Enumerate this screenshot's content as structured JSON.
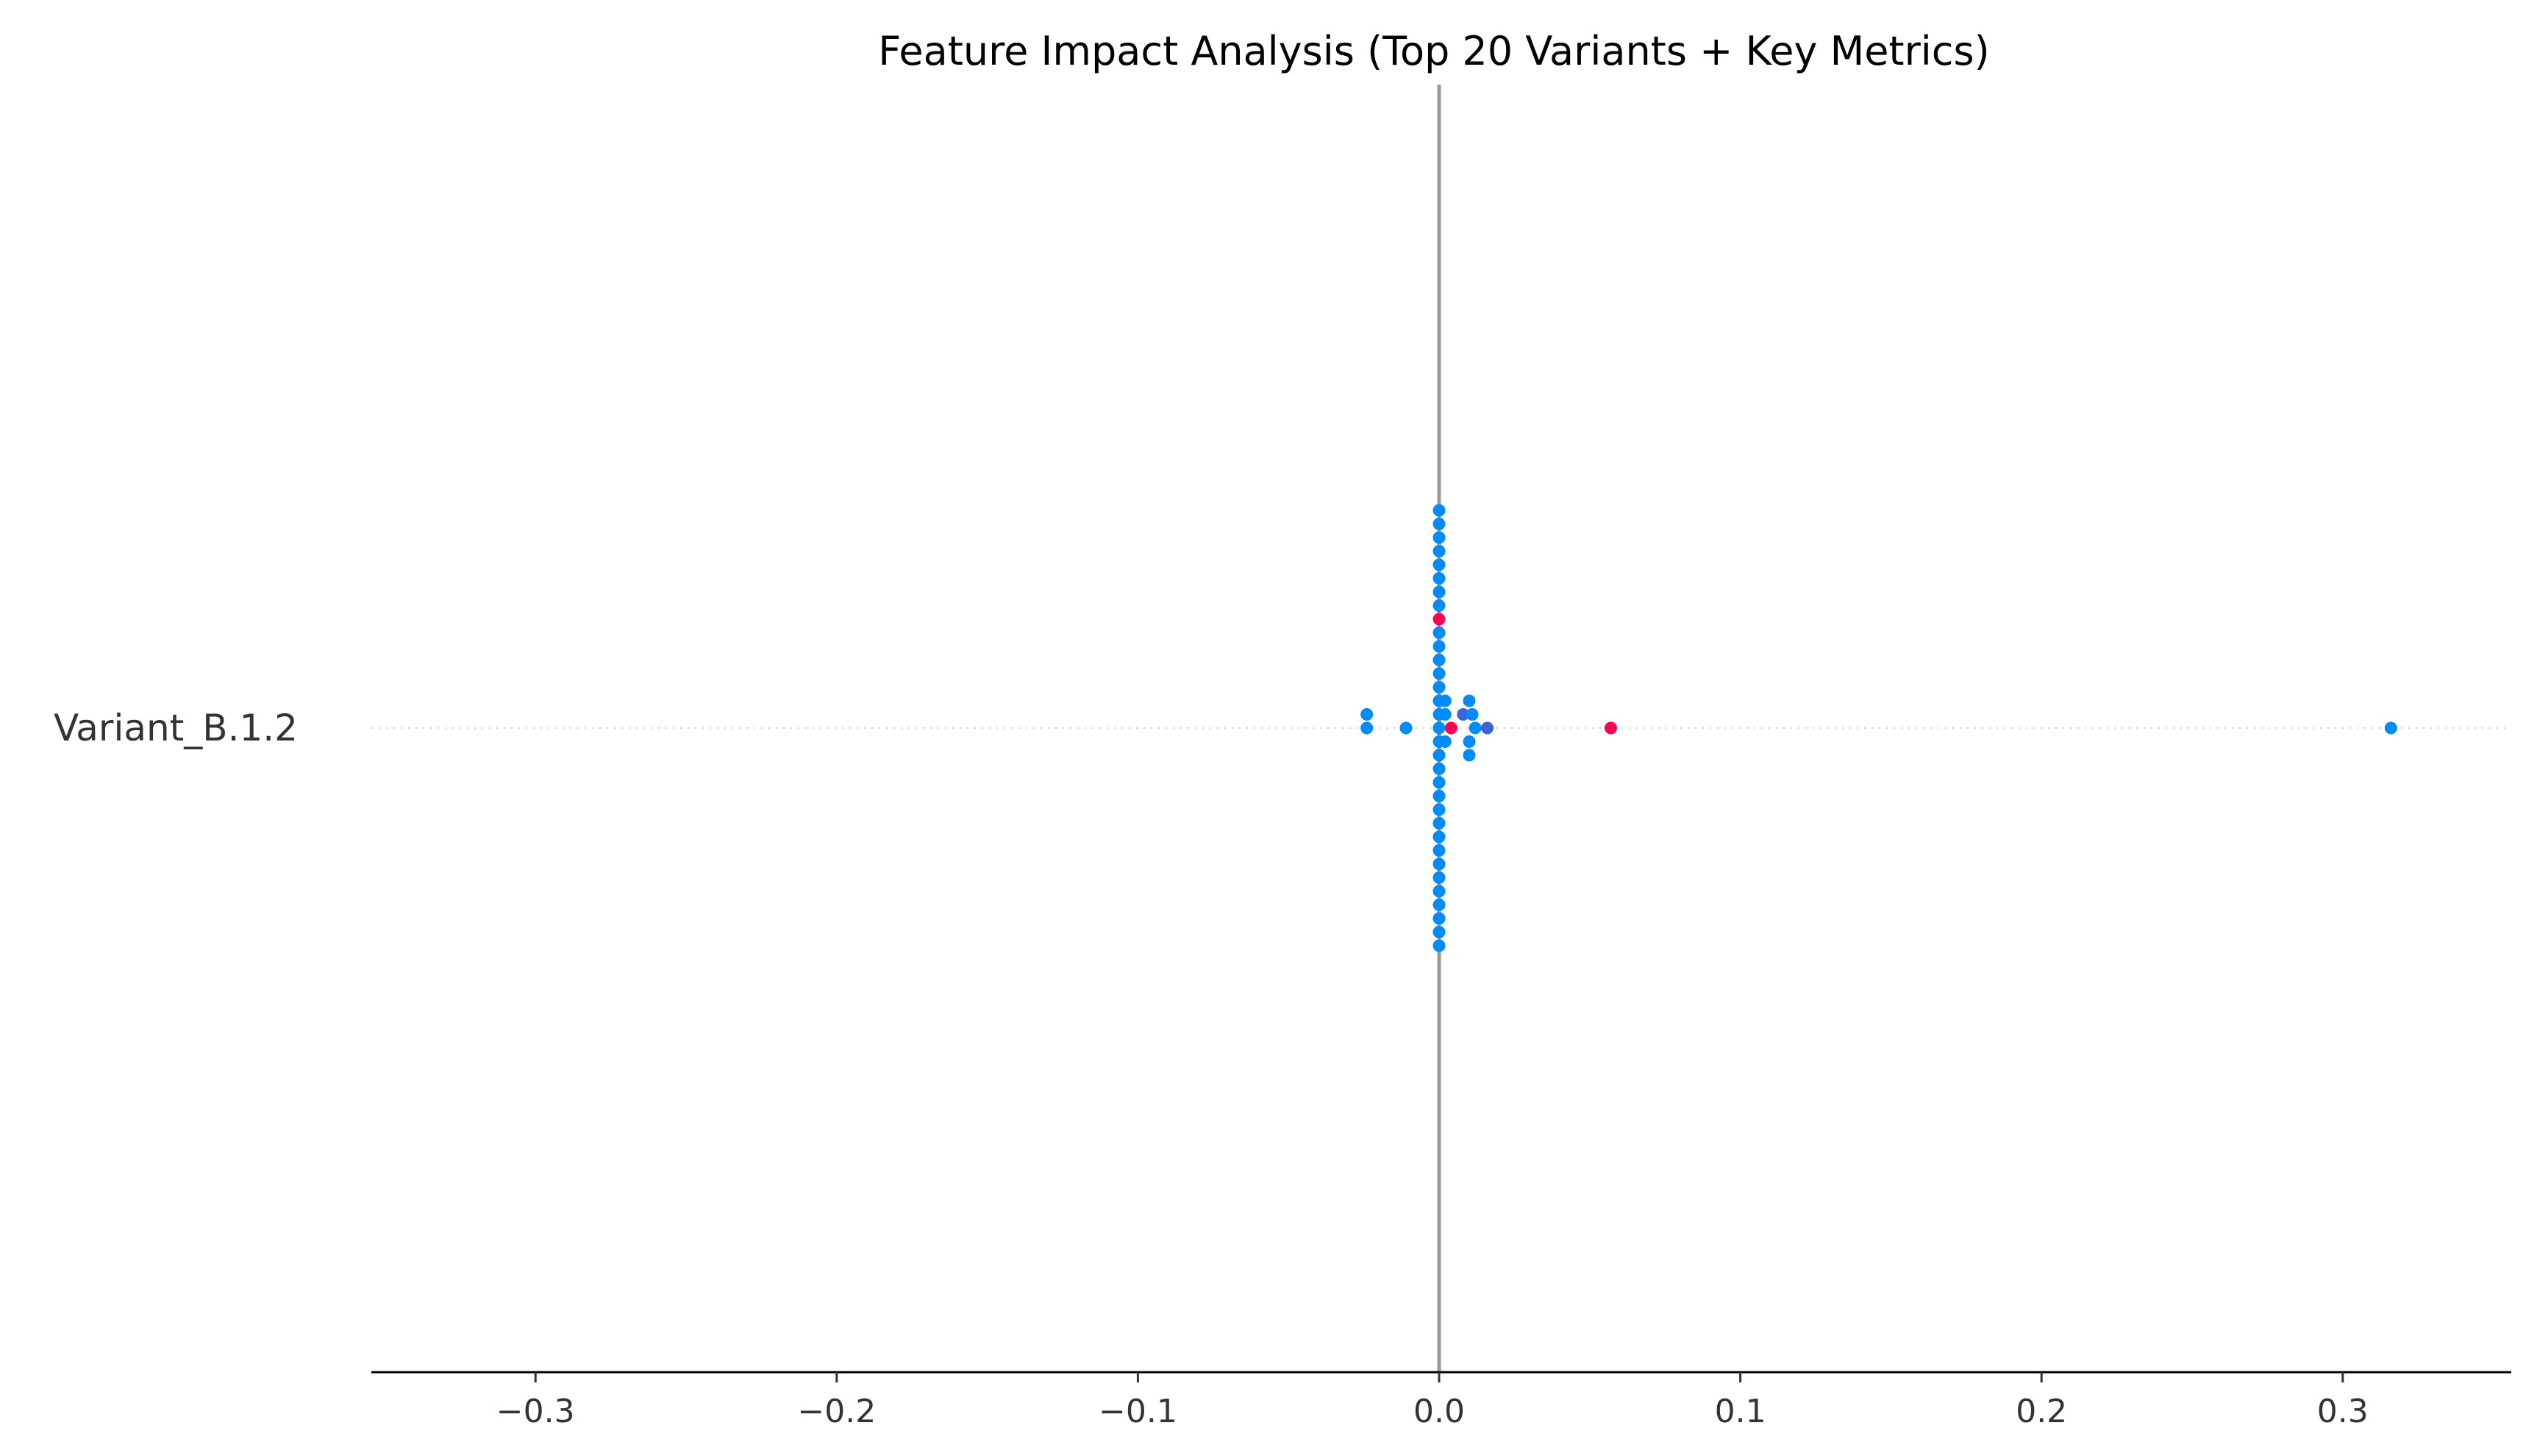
{
  "chart_data": {
    "type": "scatter",
    "title": "Feature Impact Analysis (Top 20 Variants + Key Metrics)",
    "xlabel": "",
    "ylabel": "",
    "xlim": [
      -0.355,
      0.355
    ],
    "x_ticks": [
      -0.3,
      -0.2,
      -0.1,
      0.0,
      0.1,
      0.2,
      0.3
    ],
    "x_tick_labels": [
      "−0.3",
      "−0.2",
      "−0.1",
      "0.0",
      "0.1",
      "0.2",
      "0.3"
    ],
    "grid": false,
    "legend": "none",
    "colors": {
      "low": "#008bfb",
      "high": "#ff0052",
      "mid": "#3b64d6",
      "zero_line": "#999999",
      "axis": "#000000",
      "row_guide": "#cccccc"
    },
    "features": [
      "Variant_B.1.2"
    ],
    "points": [
      {
        "feature": 0,
        "x": 0.0,
        "y": 16,
        "color": "low"
      },
      {
        "feature": 0,
        "x": 0.0,
        "y": 15,
        "color": "low"
      },
      {
        "feature": 0,
        "x": 0.0,
        "y": 14,
        "color": "low"
      },
      {
        "feature": 0,
        "x": 0.0,
        "y": 13,
        "color": "low"
      },
      {
        "feature": 0,
        "x": 0.0,
        "y": 12,
        "color": "low"
      },
      {
        "feature": 0,
        "x": 0.0,
        "y": 11,
        "color": "low"
      },
      {
        "feature": 0,
        "x": 0.0,
        "y": 10,
        "color": "low"
      },
      {
        "feature": 0,
        "x": 0.0,
        "y": 9,
        "color": "low"
      },
      {
        "feature": 0,
        "x": 0.0,
        "y": 8,
        "color": "high"
      },
      {
        "feature": 0,
        "x": 0.0,
        "y": 7,
        "color": "low"
      },
      {
        "feature": 0,
        "x": 0.0,
        "y": 6,
        "color": "low"
      },
      {
        "feature": 0,
        "x": 0.0,
        "y": 5,
        "color": "low"
      },
      {
        "feature": 0,
        "x": 0.0,
        "y": 4,
        "color": "low"
      },
      {
        "feature": 0,
        "x": 0.0,
        "y": 3,
        "color": "low"
      },
      {
        "feature": 0,
        "x": 0.0,
        "y": 2,
        "color": "low"
      },
      {
        "feature": 0,
        "x": 0.002,
        "y": 2,
        "color": "low"
      },
      {
        "feature": 0,
        "x": 0.01,
        "y": 2,
        "color": "low"
      },
      {
        "feature": 0,
        "x": -0.024,
        "y": 1,
        "color": "low"
      },
      {
        "feature": 0,
        "x": 0.0,
        "y": 1,
        "color": "low"
      },
      {
        "feature": 0,
        "x": 0.002,
        "y": 1,
        "color": "low"
      },
      {
        "feature": 0,
        "x": 0.008,
        "y": 1,
        "color": "mid"
      },
      {
        "feature": 0,
        "x": 0.011,
        "y": 1,
        "color": "low"
      },
      {
        "feature": 0,
        "x": -0.024,
        "y": 0,
        "color": "low"
      },
      {
        "feature": 0,
        "x": -0.011,
        "y": 0,
        "color": "low"
      },
      {
        "feature": 0,
        "x": 0.0,
        "y": 0,
        "color": "low"
      },
      {
        "feature": 0,
        "x": 0.004,
        "y": 0,
        "color": "high"
      },
      {
        "feature": 0,
        "x": 0.012,
        "y": 0,
        "color": "low"
      },
      {
        "feature": 0,
        "x": 0.016,
        "y": 0,
        "color": "mid"
      },
      {
        "feature": 0,
        "x": 0.057,
        "y": 0,
        "color": "high"
      },
      {
        "feature": 0,
        "x": 0.316,
        "y": 0,
        "color": "low"
      },
      {
        "feature": 0,
        "x": 0.0,
        "y": -1,
        "color": "low"
      },
      {
        "feature": 0,
        "x": 0.002,
        "y": -1,
        "color": "low"
      },
      {
        "feature": 0,
        "x": 0.01,
        "y": -1,
        "color": "low"
      },
      {
        "feature": 0,
        "x": 0.0,
        "y": -2,
        "color": "low"
      },
      {
        "feature": 0,
        "x": 0.01,
        "y": -2,
        "color": "low"
      },
      {
        "feature": 0,
        "x": 0.0,
        "y": -3,
        "color": "low"
      },
      {
        "feature": 0,
        "x": 0.0,
        "y": -4,
        "color": "low"
      },
      {
        "feature": 0,
        "x": 0.0,
        "y": -5,
        "color": "low"
      },
      {
        "feature": 0,
        "x": 0.0,
        "y": -6,
        "color": "low"
      },
      {
        "feature": 0,
        "x": 0.0,
        "y": -7,
        "color": "low"
      },
      {
        "feature": 0,
        "x": 0.0,
        "y": -8,
        "color": "low"
      },
      {
        "feature": 0,
        "x": 0.0,
        "y": -9,
        "color": "low"
      },
      {
        "feature": 0,
        "x": 0.0,
        "y": -10,
        "color": "low"
      },
      {
        "feature": 0,
        "x": 0.0,
        "y": -11,
        "color": "low"
      },
      {
        "feature": 0,
        "x": 0.0,
        "y": -12,
        "color": "low"
      },
      {
        "feature": 0,
        "x": 0.0,
        "y": -13,
        "color": "low"
      },
      {
        "feature": 0,
        "x": 0.0,
        "y": -14,
        "color": "low"
      },
      {
        "feature": 0,
        "x": 0.0,
        "y": -15,
        "color": "low"
      },
      {
        "feature": 0,
        "x": 0.0,
        "y": -16,
        "color": "low"
      }
    ]
  }
}
